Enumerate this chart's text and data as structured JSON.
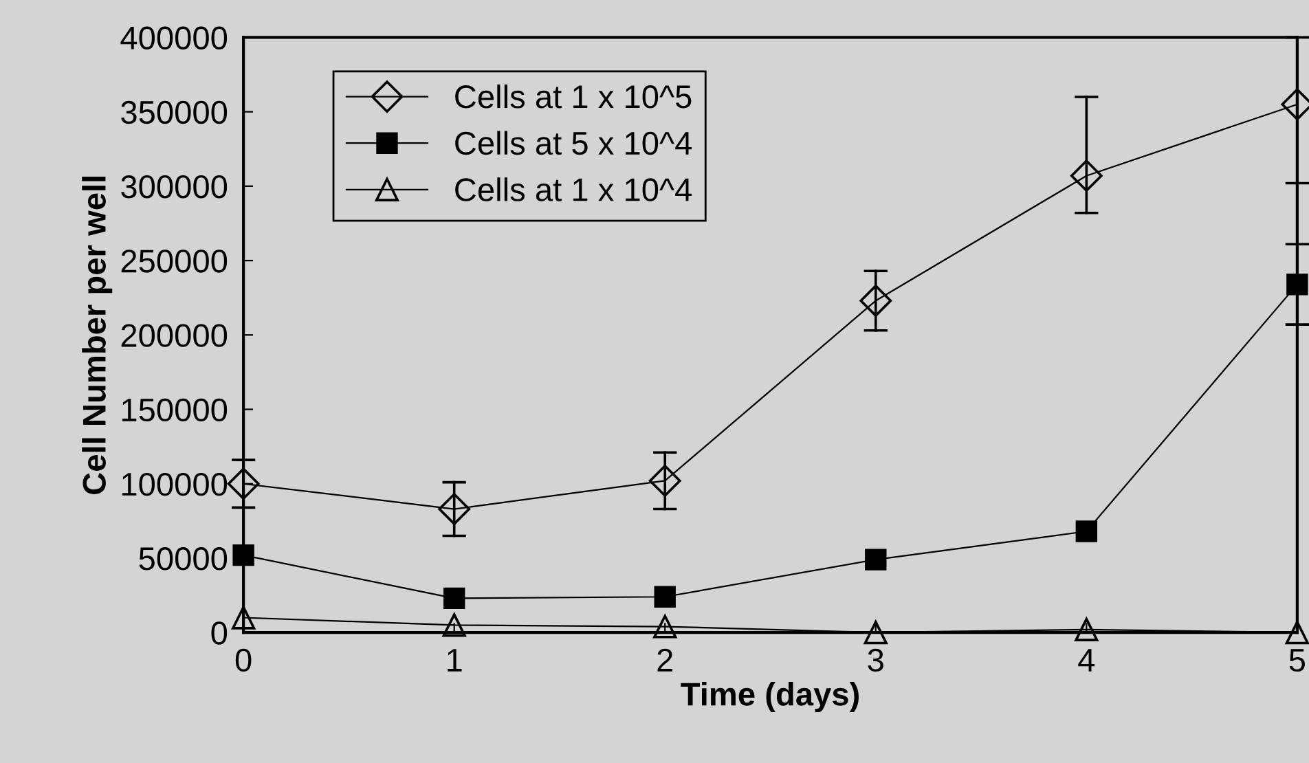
{
  "chart_data": {
    "type": "line",
    "xlabel": "Time (days)",
    "ylabel": "Cell Number per well",
    "x": [
      0,
      1,
      2,
      3,
      4,
      5
    ],
    "xlim": [
      0,
      5
    ],
    "xticks": [
      0,
      1,
      2,
      3,
      4,
      5
    ],
    "ylim": [
      0,
      400000
    ],
    "yticks": [
      0,
      50000,
      100000,
      150000,
      200000,
      250000,
      300000,
      350000,
      400000
    ],
    "grid": false,
    "legend": "top left",
    "line_style": "solid",
    "series": [
      {
        "name": "Cells at 1 x 10^5",
        "color": "#000000",
        "marker": "diamond",
        "values": [
          100000,
          83000,
          102000,
          223000,
          307000,
          355000
        ],
        "errors": [
          16000,
          18000,
          19000,
          20000,
          [
            282000,
            360000
          ],
          [
            302000,
            400000
          ]
        ]
      },
      {
        "name": "Cells at 5 x 10^4",
        "color": "#000000",
        "marker": "square",
        "values": [
          52000,
          23000,
          24000,
          49000,
          68000,
          234000
        ],
        "errors": [
          null,
          null,
          null,
          null,
          null,
          27000
        ]
      },
      {
        "name": "Cells at 1 x 10^4",
        "color": "#000000",
        "marker": "triangle",
        "values": [
          10000,
          5000,
          4000,
          0,
          2000,
          0
        ]
      }
    ]
  }
}
